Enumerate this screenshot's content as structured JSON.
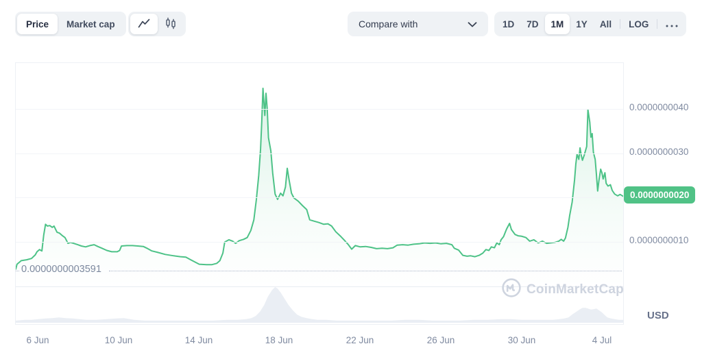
{
  "toolbar": {
    "metric_toggle": {
      "options": [
        "Price",
        "Market cap"
      ],
      "selected": "Price"
    },
    "chart_type_toggle": {
      "options": [
        "line-chart-icon",
        "candlestick-icon"
      ],
      "selected": "line-chart-icon"
    },
    "compare_dropdown": {
      "label": "Compare with",
      "icon": "chevron-down-icon"
    },
    "range_toggle": {
      "options": [
        "1D",
        "7D",
        "1M",
        "1Y",
        "All"
      ],
      "selected": "1M",
      "scale_option": "LOG",
      "more_icon": "ellipsis-icon"
    }
  },
  "watermark": {
    "icon": "coinmarketcap-logo-icon",
    "text": "CoinMarketCap"
  },
  "chart_data": {
    "type": "line",
    "title": "",
    "xlabel": "",
    "ylabel": "",
    "legend": false,
    "grid": true,
    "value_unit": "1e-10 USD",
    "x_axis": {
      "ticks": [
        {
          "label": "6 Jun",
          "pos": 0.037
        },
        {
          "label": "10 Jun",
          "pos": 0.17
        },
        {
          "label": "14 Jun",
          "pos": 0.303
        },
        {
          "label": "18 Jun",
          "pos": 0.435
        },
        {
          "label": "22 Jun",
          "pos": 0.568
        },
        {
          "label": "26 Jun",
          "pos": 0.701
        },
        {
          "label": "30 Jun",
          "pos": 0.834
        },
        {
          "label": "4 Jul",
          "pos": 0.966
        }
      ]
    },
    "y_axis": {
      "unit": "USD",
      "range_e10": [
        0,
        50.3
      ],
      "ticks": [
        {
          "label": "0.0000000040",
          "value": 40
        },
        {
          "label": "0.0000000030",
          "value": 30
        },
        {
          "label": "0.0000000020",
          "value": 20,
          "badge": true
        },
        {
          "label": "0.0000000010",
          "value": 10
        }
      ],
      "current_price": {
        "label": "0.0000000020",
        "value": 20.3,
        "badge_color": "#50c286"
      }
    },
    "baseline": {
      "label": "0.0000000003591",
      "value": 3.591,
      "style": "dotted"
    },
    "colors": {
      "line": "#4dc287",
      "fill_top": "rgba(77,194,135,0.20)",
      "volume_fill": "#eaeef4"
    },
    "series": [
      {
        "name": "Price",
        "points": [
          [
            0,
            3.9
          ],
          [
            0.002,
            5
          ],
          [
            0.009,
            5.8
          ],
          [
            0.018,
            6
          ],
          [
            0.026,
            6.3
          ],
          [
            0.032,
            7.1
          ],
          [
            0.035,
            7.8
          ],
          [
            0.039,
            8.3
          ],
          [
            0.043,
            8
          ],
          [
            0.046,
            11.6
          ],
          [
            0.049,
            14
          ],
          [
            0.052,
            13.6
          ],
          [
            0.056,
            13.7
          ],
          [
            0.06,
            13.3
          ],
          [
            0.063,
            13.6
          ],
          [
            0.068,
            12.2
          ],
          [
            0.072,
            12
          ],
          [
            0.077,
            11.4
          ],
          [
            0.081,
            11
          ],
          [
            0.086,
            9.7
          ],
          [
            0.09,
            9.9
          ],
          [
            0.095,
            9.7
          ],
          [
            0.102,
            9.4
          ],
          [
            0.108,
            9.1
          ],
          [
            0.115,
            8.9
          ],
          [
            0.122,
            9.2
          ],
          [
            0.129,
            9.4
          ],
          [
            0.135,
            9
          ],
          [
            0.142,
            8.6
          ],
          [
            0.15,
            8.1
          ],
          [
            0.158,
            7.8
          ],
          [
            0.167,
            7.8
          ],
          [
            0.171,
            8.1
          ],
          [
            0.174,
            9.1
          ],
          [
            0.183,
            9.2
          ],
          [
            0.192,
            9.2
          ],
          [
            0.201,
            9.1
          ],
          [
            0.21,
            9
          ],
          [
            0.216,
            8.6
          ],
          [
            0.224,
            8
          ],
          [
            0.233,
            7.7
          ],
          [
            0.246,
            7.2
          ],
          [
            0.26,
            6.9
          ],
          [
            0.271,
            6.7
          ],
          [
            0.28,
            6.6
          ],
          [
            0.288,
            6
          ],
          [
            0.295,
            5.5
          ],
          [
            0.302,
            5
          ],
          [
            0.314,
            4.9
          ],
          [
            0.323,
            4.9
          ],
          [
            0.331,
            5.2
          ],
          [
            0.336,
            5.8
          ],
          [
            0.341,
            7.5
          ],
          [
            0.344,
            10
          ],
          [
            0.351,
            10.5
          ],
          [
            0.357,
            10.2
          ],
          [
            0.362,
            9.7
          ],
          [
            0.368,
            10.3
          ],
          [
            0.375,
            10.6
          ],
          [
            0.381,
            11
          ],
          [
            0.387,
            12.6
          ],
          [
            0.392,
            15
          ],
          [
            0.396,
            19.5
          ],
          [
            0.4,
            25
          ],
          [
            0.403,
            31
          ],
          [
            0.405,
            37
          ],
          [
            0.407,
            44.6
          ],
          [
            0.41,
            38.5
          ],
          [
            0.412,
            43.5
          ],
          [
            0.414,
            40
          ],
          [
            0.416,
            33.5
          ],
          [
            0.42,
            30.5
          ],
          [
            0.423,
            25.5
          ],
          [
            0.427,
            20.8
          ],
          [
            0.431,
            19.6
          ],
          [
            0.436,
            21
          ],
          [
            0.44,
            20.4
          ],
          [
            0.444,
            22.4
          ],
          [
            0.447,
            26.6
          ],
          [
            0.45,
            24
          ],
          [
            0.454,
            21
          ],
          [
            0.458,
            19.9
          ],
          [
            0.465,
            19.2
          ],
          [
            0.472,
            18.2
          ],
          [
            0.479,
            17.3
          ],
          [
            0.484,
            15
          ],
          [
            0.491,
            14.7
          ],
          [
            0.499,
            14.4
          ],
          [
            0.507,
            14
          ],
          [
            0.514,
            14.1
          ],
          [
            0.52,
            13.6
          ],
          [
            0.527,
            12.3
          ],
          [
            0.534,
            11.4
          ],
          [
            0.541,
            10.4
          ],
          [
            0.547,
            9.5
          ],
          [
            0.553,
            8.4
          ],
          [
            0.559,
            9.2
          ],
          [
            0.567,
            8.9
          ],
          [
            0.576,
            9
          ],
          [
            0.585,
            8.8
          ],
          [
            0.594,
            8.5
          ],
          [
            0.603,
            8.6
          ],
          [
            0.612,
            8.5
          ],
          [
            0.621,
            8.7
          ],
          [
            0.628,
            9.3
          ],
          [
            0.637,
            9.4
          ],
          [
            0.646,
            9.3
          ],
          [
            0.655,
            9.5
          ],
          [
            0.664,
            9.6
          ],
          [
            0.673,
            9.8
          ],
          [
            0.682,
            9.7
          ],
          [
            0.691,
            9.8
          ],
          [
            0.7,
            9.6
          ],
          [
            0.709,
            9.7
          ],
          [
            0.718,
            9.4
          ],
          [
            0.722,
            8.6
          ],
          [
            0.729,
            8.2
          ],
          [
            0.736,
            7
          ],
          [
            0.743,
            6.8
          ],
          [
            0.749,
            6.9
          ],
          [
            0.756,
            6.7
          ],
          [
            0.763,
            7
          ],
          [
            0.769,
            7.5
          ],
          [
            0.774,
            8.3
          ],
          [
            0.779,
            8.1
          ],
          [
            0.783,
            8.9
          ],
          [
            0.788,
            8.7
          ],
          [
            0.792,
            9.8
          ],
          [
            0.796,
            9.4
          ],
          [
            0.799,
            10.5
          ],
          [
            0.803,
            11.2
          ],
          [
            0.808,
            12.9
          ],
          [
            0.813,
            14.2
          ],
          [
            0.816,
            12.8
          ],
          [
            0.822,
            11.7
          ],
          [
            0.827,
            11.4
          ],
          [
            0.833,
            11.3
          ],
          [
            0.84,
            11
          ],
          [
            0.846,
            10.2
          ],
          [
            0.853,
            10.5
          ],
          [
            0.86,
            9.8
          ],
          [
            0.867,
            10.2
          ],
          [
            0.874,
            9.7
          ],
          [
            0.88,
            9.8
          ],
          [
            0.887,
            9.9
          ],
          [
            0.894,
            10.2
          ],
          [
            0.898,
            10.6
          ],
          [
            0.902,
            10.2
          ],
          [
            0.905,
            10.9
          ],
          [
            0.909,
            13.3
          ],
          [
            0.912,
            16
          ],
          [
            0.916,
            19
          ],
          [
            0.92,
            24
          ],
          [
            0.922,
            27.5
          ],
          [
            0.924,
            29.8
          ],
          [
            0.927,
            28.6
          ],
          [
            0.929,
            31.2
          ],
          [
            0.931,
            29.5
          ],
          [
            0.933,
            28.4
          ],
          [
            0.936,
            29.6
          ],
          [
            0.938,
            30.6
          ],
          [
            0.94,
            31.5
          ],
          [
            0.942,
            39.8
          ],
          [
            0.945,
            37
          ],
          [
            0.947,
            33.6
          ],
          [
            0.949,
            34.4
          ],
          [
            0.951,
            30.2
          ],
          [
            0.954,
            28.6
          ],
          [
            0.956,
            25.2
          ],
          [
            0.958,
            21.5
          ],
          [
            0.96,
            23.8
          ],
          [
            0.963,
            26.4
          ],
          [
            0.965,
            25.6
          ],
          [
            0.967,
            24.2
          ],
          [
            0.97,
            25.6
          ],
          [
            0.972,
            23.2
          ],
          [
            0.975,
            22.6
          ],
          [
            0.979,
            22.9
          ],
          [
            0.982,
            21.6
          ],
          [
            0.986,
            20.8
          ],
          [
            0.991,
            20.4
          ],
          [
            0.995,
            20.7
          ],
          [
            1,
            20.3
          ]
        ]
      }
    ],
    "volume": {
      "name": "Volume",
      "unit": "relative",
      "points": [
        [
          0,
          0.06
        ],
        [
          0.015,
          0.08
        ],
        [
          0.026,
          0.08
        ],
        [
          0.037,
          0.1
        ],
        [
          0.049,
          0.12
        ],
        [
          0.06,
          0.13
        ],
        [
          0.071,
          0.15
        ],
        [
          0.082,
          0.13
        ],
        [
          0.094,
          0.12
        ],
        [
          0.105,
          0.1
        ],
        [
          0.116,
          0.08
        ],
        [
          0.133,
          0.08
        ],
        [
          0.15,
          0.1
        ],
        [
          0.165,
          0.12
        ],
        [
          0.178,
          0.13
        ],
        [
          0.195,
          0.08
        ],
        [
          0.212,
          0.06
        ],
        [
          0.235,
          0.06
        ],
        [
          0.257,
          0.06
        ],
        [
          0.28,
          0.06
        ],
        [
          0.302,
          0.06
        ],
        [
          0.325,
          0.06
        ],
        [
          0.348,
          0.08
        ],
        [
          0.365,
          0.08
        ],
        [
          0.379,
          0.1
        ],
        [
          0.388,
          0.13
        ],
        [
          0.395,
          0.19
        ],
        [
          0.402,
          0.31
        ],
        [
          0.409,
          0.5
        ],
        [
          0.415,
          0.73
        ],
        [
          0.422,
          0.92
        ],
        [
          0.427,
          1
        ],
        [
          0.431,
          0.96
        ],
        [
          0.436,
          0.85
        ],
        [
          0.442,
          0.69
        ],
        [
          0.449,
          0.5
        ],
        [
          0.456,
          0.35
        ],
        [
          0.463,
          0.23
        ],
        [
          0.47,
          0.17
        ],
        [
          0.479,
          0.13
        ],
        [
          0.488,
          0.1
        ],
        [
          0.497,
          0.08
        ],
        [
          0.511,
          0.08
        ],
        [
          0.528,
          0.06
        ],
        [
          0.551,
          0.06
        ],
        [
          0.573,
          0.06
        ],
        [
          0.596,
          0.06
        ],
        [
          0.619,
          0.06
        ],
        [
          0.641,
          0.08
        ],
        [
          0.664,
          0.08
        ],
        [
          0.686,
          0.06
        ],
        [
          0.709,
          0.06
        ],
        [
          0.731,
          0.06
        ],
        [
          0.754,
          0.08
        ],
        [
          0.777,
          0.08
        ],
        [
          0.799,
          0.1
        ],
        [
          0.816,
          0.1
        ],
        [
          0.833,
          0.08
        ],
        [
          0.85,
          0.08
        ],
        [
          0.867,
          0.08
        ],
        [
          0.884,
          0.08
        ],
        [
          0.895,
          0.1
        ],
        [
          0.903,
          0.12
        ],
        [
          0.91,
          0.15
        ],
        [
          0.916,
          0.23
        ],
        [
          0.923,
          0.31
        ],
        [
          0.929,
          0.38
        ],
        [
          0.933,
          0.42
        ],
        [
          0.938,
          0.42
        ],
        [
          0.942,
          0.4
        ],
        [
          0.947,
          0.37
        ],
        [
          0.951,
          0.38
        ],
        [
          0.956,
          0.4
        ],
        [
          0.96,
          0.35
        ],
        [
          0.965,
          0.29
        ],
        [
          0.97,
          0.21
        ],
        [
          0.974,
          0.15
        ],
        [
          0.98,
          0.12
        ],
        [
          0.986,
          0.1
        ],
        [
          0.993,
          0.08
        ],
        [
          1,
          0.08
        ]
      ]
    }
  }
}
